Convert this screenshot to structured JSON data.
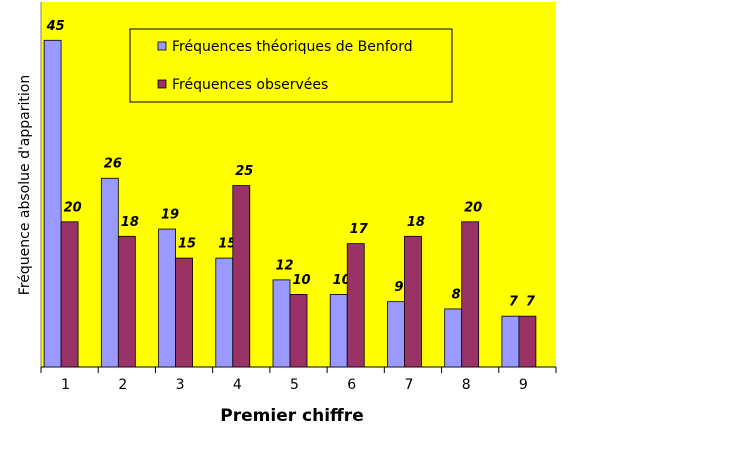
{
  "chart_data": {
    "type": "bar",
    "x_label": "Premier chiffre",
    "y_label": "Fréquence absolue d'apparition",
    "categories": [
      "1",
      "2",
      "3",
      "4",
      "5",
      "6",
      "7",
      "8",
      "9"
    ],
    "series": [
      {
        "name": "Fréquences théoriques de Benford",
        "color": "#9999ff",
        "values": [
          45,
          26,
          19,
          15,
          12,
          10,
          9,
          8,
          7
        ]
      },
      {
        "name": "Fréquences observées",
        "color": "#993366",
        "values": [
          20,
          18,
          15,
          25,
          10,
          17,
          18,
          20,
          7
        ]
      }
    ],
    "ylim": [
      0,
      50
    ],
    "background": "#ffff00"
  }
}
